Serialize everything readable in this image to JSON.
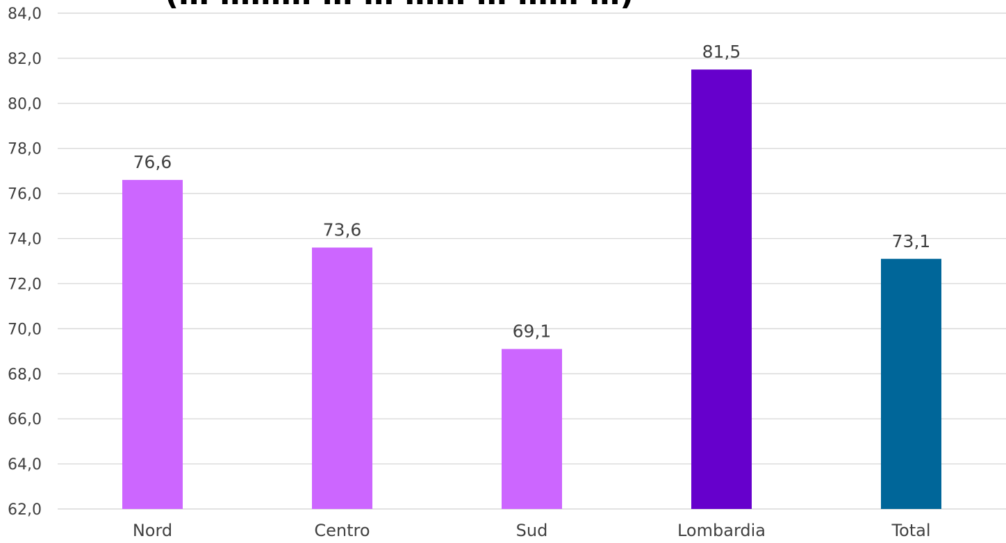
{
  "chart_data": {
    "type": "bar",
    "title": "(… ……… … … …… … …… …)",
    "categories": [
      "Nord",
      "Centro",
      "Sud",
      "Lombardia",
      "Total"
    ],
    "values": [
      76.6,
      73.6,
      69.1,
      81.5,
      73.1
    ],
    "value_labels": [
      "76,6",
      "73,6",
      "69,1",
      "81,5",
      "73,1"
    ],
    "bar_colors": [
      "#cc66ff",
      "#cc66ff",
      "#cc66ff",
      "#6600cc",
      "#006699"
    ],
    "ylim": [
      62.0,
      84.0
    ],
    "y_ticks": [
      "62,0",
      "64,0",
      "66,0",
      "68,0",
      "70,0",
      "72,0",
      "74,0",
      "76,0",
      "78,0",
      "80,0",
      "82,0",
      "84,0"
    ],
    "y_tick_values": [
      62,
      64,
      66,
      68,
      70,
      72,
      74,
      76,
      78,
      80,
      82,
      84
    ],
    "grid": true,
    "legend": "none",
    "xlabel": "",
    "ylabel": ""
  }
}
